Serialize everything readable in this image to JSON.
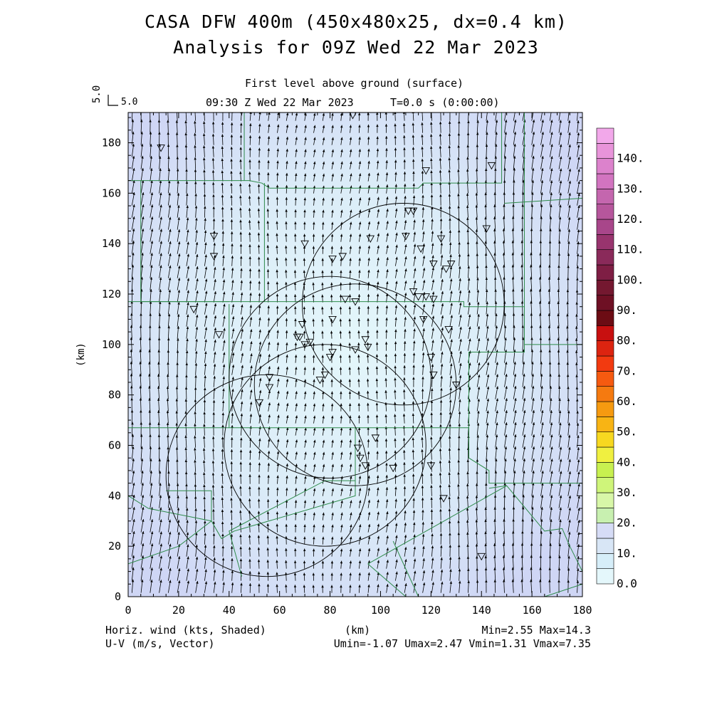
{
  "header": {
    "title_line1": "CASA DFW 400m (450x480x25, dx=0.4 km)",
    "title_line2": "Analysis for 09Z Wed 22 Mar 2023",
    "level": "First level above ground (surface)",
    "time": "09:30 Z Wed 22 Mar 2023",
    "elapsed": "T=0.0 s (0:00:00)",
    "ref_vector_value": "5.0",
    "ref_vector_label": "5.0"
  },
  "footer": {
    "left_line1": "Horiz. wind (kts, Shaded)",
    "left_line2": "U-V (m/s, Vector)",
    "center": "(km)",
    "right_line1": "Min=2.55 Max=14.3",
    "right_line2": "Umin=-1.07 Umax=2.47 Vmin=1.31 Vmax=7.35"
  },
  "chart_data": {
    "type": "heatmap",
    "title": "CASA DFW 400m (450x480x25, dx=0.4 km)",
    "subtitle": "Analysis for 09Z Wed 22 Mar 2023",
    "xlabel": "",
    "ylabel": "(km)",
    "xlim": [
      0,
      180
    ],
    "ylim": [
      0,
      192
    ],
    "xticks": [
      0,
      20,
      40,
      60,
      80,
      100,
      120,
      140,
      160,
      180
    ],
    "yticks": [
      0,
      20,
      40,
      60,
      80,
      100,
      120,
      140,
      160,
      180
    ],
    "shaded_field": "Horiz. wind (kts, Shaded)",
    "vector_field": "U-V (m/s, Vector)",
    "stats": {
      "min": 2.55,
      "max": 14.3,
      "umin": -1.07,
      "umax": 2.47,
      "vmin": 1.31,
      "vmax": 7.35
    },
    "colorbar": {
      "labels": [
        "0.0",
        "10.",
        "20.",
        "30.",
        "40.",
        "50.",
        "60.",
        "70.",
        "80.",
        "90.",
        "100.",
        "110.",
        "120.",
        "130.",
        "140."
      ],
      "levels": [
        0,
        5,
        10,
        15,
        20,
        25,
        30,
        35,
        40,
        45,
        50,
        55,
        60,
        65,
        70,
        75,
        80,
        85,
        90,
        95,
        100,
        105,
        110,
        115,
        120,
        125,
        130,
        135,
        140,
        145
      ],
      "colors": [
        "#e4f7fb",
        "#d6eef9",
        "#d8e6f6",
        "#d6dcf6",
        "#c8f0b0",
        "#d8f7a8",
        "#cff57a",
        "#c8f050",
        "#f0f040",
        "#f7d820",
        "#f8b414",
        "#f69a10",
        "#f57a10",
        "#f65a10",
        "#f23a10",
        "#dc2410",
        "#c81010",
        "#6c0c14",
        "#6e1024",
        "#741830",
        "#7e1e44",
        "#8a2a5a",
        "#98346e",
        "#a8468a",
        "#b6569c",
        "#c466ae",
        "#d274c0",
        "#dc82cc",
        "#e894da",
        "#f2a8ea"
      ]
    },
    "radar_rings_km": [
      {
        "cx": 55,
        "cy": 48,
        "r": 40
      },
      {
        "cx": 80,
        "cy": 87,
        "r": 40
      },
      {
        "cx": 78,
        "cy": 60,
        "r": 40
      },
      {
        "cx": 90,
        "cy": 84,
        "r": 40
      },
      {
        "cx": 109,
        "cy": 116,
        "r": 40
      }
    ],
    "stations_km": [
      [
        89,
        191
      ],
      [
        13,
        178
      ],
      [
        144,
        171
      ],
      [
        118,
        169
      ],
      [
        111,
        153
      ],
      [
        113,
        153
      ],
      [
        142,
        146
      ],
      [
        34,
        143
      ],
      [
        110,
        143
      ],
      [
        96,
        142
      ],
      [
        124,
        142
      ],
      [
        70,
        140
      ],
      [
        116,
        138
      ],
      [
        34,
        135
      ],
      [
        81,
        134
      ],
      [
        85,
        135
      ],
      [
        121,
        132
      ],
      [
        128,
        132
      ],
      [
        126,
        130
      ],
      [
        113,
        121
      ],
      [
        115,
        119
      ],
      [
        118,
        119
      ],
      [
        121,
        118
      ],
      [
        86,
        118
      ],
      [
        90,
        117
      ],
      [
        26,
        114
      ],
      [
        117,
        110
      ],
      [
        81,
        110
      ],
      [
        69,
        108
      ],
      [
        127,
        106
      ],
      [
        36,
        104
      ],
      [
        68,
        103
      ],
      [
        67,
        103
      ],
      [
        72,
        101
      ],
      [
        70,
        100
      ],
      [
        94,
        102
      ],
      [
        95,
        99
      ],
      [
        90,
        98
      ],
      [
        81,
        97
      ],
      [
        80,
        95
      ],
      [
        120,
        95
      ],
      [
        56,
        87
      ],
      [
        78,
        88
      ],
      [
        76,
        86
      ],
      [
        121,
        88
      ],
      [
        130,
        84
      ],
      [
        56,
        83
      ],
      [
        52,
        77
      ],
      [
        98,
        63
      ],
      [
        91,
        59
      ],
      [
        92,
        55
      ],
      [
        94,
        52
      ],
      [
        105,
        51
      ],
      [
        120,
        52
      ],
      [
        125,
        39
      ],
      [
        140,
        16
      ]
    ],
    "boundaries_km": [
      [
        [
          0,
          165
        ],
        [
          48,
          165
        ],
        [
          53,
          164
        ],
        [
          56,
          162
        ],
        [
          115,
          162
        ],
        [
          117,
          164
        ],
        [
          148,
          164
        ],
        [
          148,
          192
        ]
      ],
      [
        [
          46,
          192
        ],
        [
          46,
          165
        ]
      ],
      [
        [
          5,
          165
        ],
        [
          5,
          117
        ],
        [
          54,
          117
        ],
        [
          54,
          164
        ]
      ],
      [
        [
          54,
          117
        ],
        [
          133,
          117
        ],
        [
          133,
          115
        ],
        [
          157,
          115
        ],
        [
          157,
          97
        ],
        [
          135,
          97
        ],
        [
          135,
          67
        ],
        [
          90,
          67
        ],
        [
          40,
          67
        ],
        [
          40,
          116
        ]
      ],
      [
        [
          0,
          117
        ],
        [
          40,
          117
        ]
      ],
      [
        [
          157,
          192
        ],
        [
          157,
          98
        ],
        [
          157,
          100
        ],
        [
          180,
          100
        ]
      ],
      [
        [
          149,
          156
        ],
        [
          180,
          158
        ]
      ],
      [
        [
          0,
          67
        ],
        [
          40,
          67
        ]
      ],
      [
        [
          15,
          42
        ],
        [
          33,
          42
        ],
        [
          33,
          30
        ]
      ],
      [
        [
          0,
          40
        ],
        [
          8,
          35
        ],
        [
          33,
          30
        ],
        [
          37,
          23
        ],
        [
          42,
          26
        ],
        [
          90,
          40
        ],
        [
          90,
          46
        ]
      ],
      [
        [
          90,
          67
        ],
        [
          90,
          46
        ],
        [
          78,
          46
        ],
        [
          40,
          26
        ],
        [
          45,
          8
        ]
      ],
      [
        [
          0,
          13
        ],
        [
          20,
          20
        ],
        [
          33,
          30
        ]
      ],
      [
        [
          135,
          67
        ],
        [
          135,
          55
        ],
        [
          143,
          50
        ],
        [
          143,
          45
        ],
        [
          180,
          45
        ]
      ],
      [
        [
          143,
          43
        ],
        [
          150,
          44
        ],
        [
          155,
          38
        ],
        [
          165,
          26
        ],
        [
          172,
          27
        ],
        [
          175,
          20
        ],
        [
          180,
          10
        ],
        [
          180,
          0
        ]
      ],
      [
        [
          95,
          13
        ],
        [
          110,
          0
        ]
      ],
      [
        [
          95,
          13
        ],
        [
          150,
          44
        ]
      ],
      [
        [
          105,
          22
        ],
        [
          115,
          0
        ]
      ],
      [
        [
          165,
          0
        ],
        [
          180,
          5
        ]
      ]
    ]
  }
}
